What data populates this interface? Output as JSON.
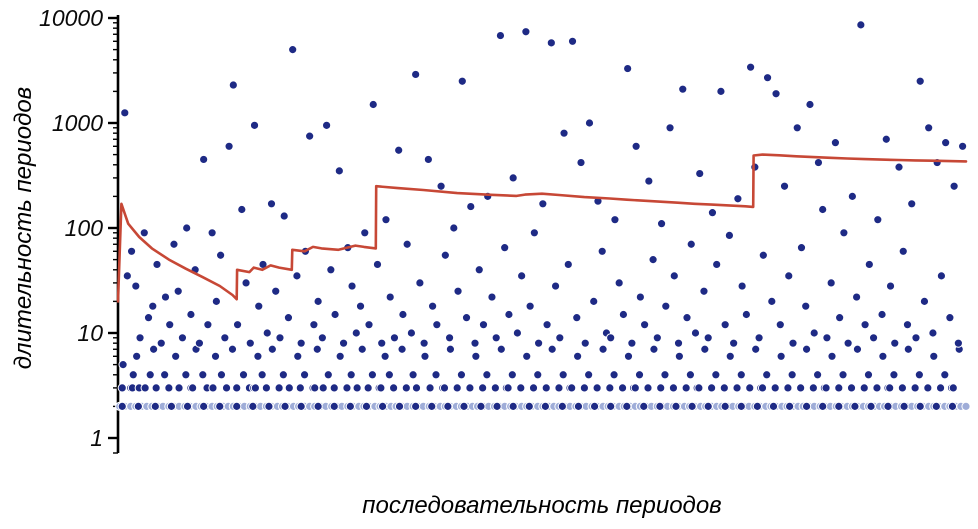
{
  "chart_data": {
    "type": "scatter",
    "title": "",
    "xlabel": "последовательность периодов",
    "ylabel": "длительность периодов",
    "x_scale": "linear",
    "y_scale": "log",
    "xlim": [
      0,
      100
    ],
    "ylim": [
      1,
      10000
    ],
    "grid": false,
    "legend": "none",
    "y_ticks": [
      1,
      10,
      100,
      1000,
      10000
    ],
    "y_tick_labels": [
      "1",
      "10",
      "100",
      "1000",
      "10000"
    ],
    "colors": {
      "scatter_fill": "#1e2a85",
      "scatter_stroke": "#ffffff",
      "band_fill": "#9fadd8",
      "line": "#c74836",
      "axis": "#000000",
      "text": "#000000"
    },
    "bands": [
      {
        "y": 2,
        "fill": "#9fadd8",
        "x": [
          0.2,
          0.8,
          1.5,
          2.1,
          2.8,
          3.4,
          4.0,
          4.7,
          5.3,
          6.0,
          6.6,
          7.2,
          7.9,
          8.5,
          9.2,
          9.8,
          10.4,
          11.1,
          11.7,
          12.4,
          13.0,
          13.6,
          14.3,
          14.9,
          15.6,
          16.2,
          16.8,
          17.5,
          18.1,
          18.8,
          19.4,
          20.0,
          20.7,
          21.3,
          22.0,
          22.6,
          23.2,
          23.9,
          24.5,
          25.2,
          25.8,
          26.4,
          27.1,
          27.7,
          28.4,
          29.0,
          29.6,
          30.3,
          30.9,
          31.6,
          32.2,
          32.8,
          33.5,
          34.1,
          34.8,
          35.4,
          36.0,
          36.7,
          37.3,
          38.0,
          38.6,
          39.2,
          39.9,
          40.5,
          41.2,
          41.8,
          42.4,
          43.1,
          43.7,
          44.4,
          45.0,
          45.6,
          46.3,
          46.9,
          47.6,
          48.2,
          48.8,
          49.5,
          50.1,
          50.8,
          51.4,
          52.0,
          52.7,
          53.3,
          54.0,
          54.6,
          55.2,
          55.9,
          56.5,
          57.2,
          57.8,
          58.4,
          59.1,
          59.7,
          60.4,
          61.0,
          61.6,
          62.3,
          62.9,
          63.6,
          64.2,
          64.8,
          65.5,
          66.1,
          66.8,
          67.4,
          68.0,
          68.7,
          69.3,
          70.0,
          70.6,
          71.2,
          71.9,
          72.5,
          73.2,
          73.8,
          74.4,
          75.1,
          75.7,
          76.4,
          77.0,
          77.6,
          78.3,
          78.9,
          79.6,
          80.2,
          80.8,
          81.5,
          82.1,
          82.8,
          83.4,
          84.0,
          84.7,
          85.3,
          86.0,
          86.6,
          87.2,
          87.9,
          88.5,
          89.2,
          89.8,
          90.4,
          91.1,
          91.7,
          92.4,
          93.0,
          93.6,
          94.3,
          94.9,
          95.6,
          96.2,
          96.8,
          97.5,
          98.1,
          98.8,
          99.4,
          100
        ]
      },
      {
        "y": 2,
        "fill": "#1e2a85",
        "x": [
          0.5,
          2.4,
          4.4,
          6.3,
          8.2,
          10.1,
          12.0,
          14.0,
          15.9,
          17.8,
          19.7,
          21.6,
          23.6,
          25.5,
          27.4,
          29.3,
          31.2,
          33.2,
          35.1,
          37.0,
          38.9,
          40.8,
          42.8,
          44.7,
          46.6,
          48.5,
          50.4,
          52.4,
          54.3,
          56.2,
          58.1,
          60.0,
          62.0,
          63.9,
          65.8,
          67.7,
          69.6,
          71.6,
          73.5,
          75.4,
          77.3,
          79.2,
          81.2,
          83.1,
          85.0,
          86.9,
          88.8,
          90.8,
          92.7,
          94.6,
          96.5,
          98.4
        ]
      },
      {
        "y": 3,
        "fill": "#1e2a85",
        "x": [
          0.5,
          1.5,
          1.7,
          2.5,
          3.2,
          4.5,
          6.0,
          7.2,
          8.6,
          8.8,
          10.5,
          11.2,
          12.8,
          14.0,
          15.5,
          16.0,
          16.2,
          17.5,
          19.0,
          20.2,
          21.5,
          23.0,
          23.2,
          24.2,
          25.5,
          27.0,
          28.2,
          29.5,
          30.8,
          31.0,
          32.5,
          34.0,
          35.2,
          36.8,
          38.3,
          38.5,
          40.0,
          41.5,
          43.0,
          44.5,
          45.8,
          46.0,
          47.5,
          49.0,
          50.5,
          52.0,
          53.3,
          53.5,
          55.0,
          56.5,
          58.0,
          59.5,
          60.8,
          61.0,
          62.5,
          64.0,
          65.5,
          67.0,
          68.3,
          68.5,
          70.0,
          71.5,
          73.0,
          74.5,
          75.8,
          76.0,
          77.5,
          79.0,
          80.5,
          82.0,
          83.3,
          83.5,
          85.0,
          86.5,
          88.0,
          89.5,
          90.8,
          91.0,
          92.5,
          94.0,
          95.5,
          97.0,
          98.3,
          98.5
        ]
      },
      {
        "y": 4,
        "fill": "#1e2a85",
        "x": [
          1.8,
          3.8,
          5.5,
          8.0,
          10.0,
          12.2,
          14.8,
          17.0,
          19.5,
          22.0,
          24.8,
          27.5,
          30.0,
          32.0,
          34.8,
          37.5,
          40.5,
          43.5,
          46.5,
          49.5,
          52.5,
          55.5,
          58.5,
          61.5,
          64.5,
          67.5,
          70.5,
          73.5,
          76.5,
          79.5,
          82.5,
          85.5,
          88.5,
          91.5,
          94.5,
          97.5
        ]
      },
      {
        "y": 6,
        "fill": "#1e2a85",
        "x": [
          2.2,
          6.8,
          11.5,
          16.5,
          21.2,
          26.2,
          31.5,
          36.2,
          42.2,
          48.2,
          54.2,
          60.2,
          66.2,
          72.2,
          78.2,
          84.2,
          90.2,
          96.2
        ]
      },
      {
        "y": 7,
        "fill": "#1e2a85",
        "x": [
          4.2,
          9.2,
          13.5,
          18.2,
          23.5,
          28.8,
          33.5,
          39.2,
          45.2,
          51.2,
          57.2,
          63.2,
          69.2,
          75.2,
          81.2,
          87.2,
          93.2,
          99.2
        ]
      }
    ],
    "points": [
      [
        0.6,
        5
      ],
      [
        0.8,
        1250
      ],
      [
        1.1,
        35
      ],
      [
        1.6,
        60
      ],
      [
        2.1,
        28
      ],
      [
        2.6,
        9
      ],
      [
        3.1,
        90
      ],
      [
        3.6,
        14
      ],
      [
        4.1,
        18
      ],
      [
        4.6,
        45
      ],
      [
        5.1,
        8
      ],
      [
        5.6,
        22
      ],
      [
        6.1,
        12
      ],
      [
        6.6,
        70
      ],
      [
        7.1,
        25
      ],
      [
        7.6,
        9
      ],
      [
        8.1,
        100
      ],
      [
        8.6,
        15
      ],
      [
        9.1,
        40
      ],
      [
        9.6,
        8
      ],
      [
        10.1,
        450
      ],
      [
        10.6,
        12
      ],
      [
        11.1,
        90
      ],
      [
        11.6,
        20
      ],
      [
        12.1,
        55
      ],
      [
        12.6,
        9
      ],
      [
        13.1,
        600
      ],
      [
        13.6,
        2300
      ],
      [
        14.1,
        12
      ],
      [
        14.6,
        150
      ],
      [
        15.1,
        30
      ],
      [
        15.6,
        8
      ],
      [
        16.1,
        950
      ],
      [
        16.6,
        18
      ],
      [
        17.1,
        45
      ],
      [
        17.6,
        10
      ],
      [
        18.1,
        170
      ],
      [
        18.6,
        25
      ],
      [
        19.1,
        9
      ],
      [
        19.6,
        130
      ],
      [
        20.1,
        14
      ],
      [
        20.6,
        5000
      ],
      [
        21.1,
        35
      ],
      [
        21.6,
        8
      ],
      [
        22.1,
        60
      ],
      [
        22.6,
        750
      ],
      [
        23.1,
        12
      ],
      [
        23.6,
        20
      ],
      [
        24.1,
        9
      ],
      [
        24.6,
        950
      ],
      [
        25.1,
        40
      ],
      [
        25.6,
        15
      ],
      [
        26.1,
        350
      ],
      [
        26.6,
        8
      ],
      [
        27.1,
        65
      ],
      [
        27.6,
        28
      ],
      [
        28.1,
        10
      ],
      [
        28.6,
        18
      ],
      [
        29.1,
        90
      ],
      [
        29.6,
        12
      ],
      [
        30.1,
        1500
      ],
      [
        30.6,
        45
      ],
      [
        31.1,
        8
      ],
      [
        31.6,
        120
      ],
      [
        32.1,
        22
      ],
      [
        32.6,
        9
      ],
      [
        33.1,
        550
      ],
      [
        33.6,
        15
      ],
      [
        34.1,
        70
      ],
      [
        34.6,
        10
      ],
      [
        35.1,
        2900
      ],
      [
        35.6,
        30
      ],
      [
        36.1,
        8
      ],
      [
        36.6,
        450
      ],
      [
        37.1,
        18
      ],
      [
        37.6,
        12
      ],
      [
        38.1,
        250
      ],
      [
        38.6,
        55
      ],
      [
        39.1,
        9
      ],
      [
        39.6,
        100
      ],
      [
        40.1,
        25
      ],
      [
        40.6,
        2500
      ],
      [
        41.1,
        14
      ],
      [
        41.6,
        160
      ],
      [
        42.1,
        8
      ],
      [
        42.6,
        40
      ],
      [
        43.1,
        12
      ],
      [
        43.6,
        200
      ],
      [
        44.1,
        22
      ],
      [
        44.6,
        9
      ],
      [
        45.1,
        6800
      ],
      [
        45.6,
        65
      ],
      [
        46.1,
        15
      ],
      [
        46.6,
        300
      ],
      [
        47.1,
        10
      ],
      [
        47.6,
        35
      ],
      [
        48.1,
        7400
      ],
      [
        48.6,
        18
      ],
      [
        49.1,
        90
      ],
      [
        49.6,
        8
      ],
      [
        50.1,
        170
      ],
      [
        50.6,
        12
      ],
      [
        51.1,
        5800
      ],
      [
        51.6,
        28
      ],
      [
        52.1,
        9
      ],
      [
        52.6,
        800
      ],
      [
        53.1,
        45
      ],
      [
        53.6,
        6000
      ],
      [
        54.1,
        14
      ],
      [
        54.6,
        420
      ],
      [
        55.1,
        8
      ],
      [
        55.6,
        1000
      ],
      [
        56.1,
        20
      ],
      [
        56.6,
        180
      ],
      [
        57.1,
        60
      ],
      [
        57.6,
        10
      ],
      [
        58.1,
        9
      ],
      [
        58.6,
        120
      ],
      [
        59.1,
        30
      ],
      [
        59.6,
        15
      ],
      [
        60.1,
        3300
      ],
      [
        60.6,
        8
      ],
      [
        61.1,
        600
      ],
      [
        61.6,
        22
      ],
      [
        62.1,
        12
      ],
      [
        62.6,
        280
      ],
      [
        63.1,
        50
      ],
      [
        63.6,
        9
      ],
      [
        64.1,
        110
      ],
      [
        64.6,
        18
      ],
      [
        65.1,
        900
      ],
      [
        65.6,
        35
      ],
      [
        66.1,
        8
      ],
      [
        66.6,
        2100
      ],
      [
        67.1,
        14
      ],
      [
        67.6,
        70
      ],
      [
        68.1,
        10
      ],
      [
        68.6,
        330
      ],
      [
        69.1,
        25
      ],
      [
        69.6,
        9
      ],
      [
        70.1,
        140
      ],
      [
        70.6,
        45
      ],
      [
        71.1,
        2000
      ],
      [
        71.6,
        12
      ],
      [
        72.1,
        85
      ],
      [
        72.6,
        8
      ],
      [
        73.1,
        190
      ],
      [
        73.6,
        28
      ],
      [
        74.1,
        15
      ],
      [
        74.6,
        3400
      ],
      [
        75.1,
        380
      ],
      [
        75.6,
        9
      ],
      [
        76.1,
        55
      ],
      [
        76.6,
        2700
      ],
      [
        77.1,
        20
      ],
      [
        77.6,
        1900
      ],
      [
        78.1,
        12
      ],
      [
        78.6,
        250
      ],
      [
        79.1,
        35
      ],
      [
        79.6,
        8
      ],
      [
        80.1,
        900
      ],
      [
        80.6,
        65
      ],
      [
        81.1,
        18
      ],
      [
        81.6,
        1500
      ],
      [
        82.1,
        10
      ],
      [
        82.6,
        420
      ],
      [
        83.1,
        150
      ],
      [
        83.6,
        9
      ],
      [
        84.1,
        30
      ],
      [
        84.6,
        650
      ],
      [
        85.1,
        14
      ],
      [
        85.6,
        90
      ],
      [
        86.1,
        8
      ],
      [
        86.6,
        200
      ],
      [
        87.1,
        22
      ],
      [
        87.6,
        8600
      ],
      [
        88.1,
        12
      ],
      [
        88.6,
        45
      ],
      [
        89.1,
        9
      ],
      [
        89.6,
        120
      ],
      [
        90.1,
        15
      ],
      [
        90.6,
        700
      ],
      [
        91.1,
        28
      ],
      [
        91.6,
        8
      ],
      [
        92.1,
        380
      ],
      [
        92.6,
        60
      ],
      [
        93.1,
        12
      ],
      [
        93.6,
        170
      ],
      [
        94.1,
        9
      ],
      [
        94.6,
        2500
      ],
      [
        95.1,
        20
      ],
      [
        95.6,
        900
      ],
      [
        96.1,
        10
      ],
      [
        96.6,
        420
      ],
      [
        97.1,
        35
      ],
      [
        97.6,
        650
      ],
      [
        98.1,
        14
      ],
      [
        98.6,
        250
      ],
      [
        99.1,
        8
      ],
      [
        99.6,
        600
      ]
    ],
    "line": {
      "name": "running-mean-line",
      "points": [
        [
          0,
          20
        ],
        [
          0.4,
          170
        ],
        [
          1.2,
          110
        ],
        [
          2.5,
          82
        ],
        [
          4,
          64
        ],
        [
          6,
          50
        ],
        [
          8,
          41
        ],
        [
          10,
          34
        ],
        [
          12,
          28
        ],
        [
          13.5,
          23
        ],
        [
          14,
          21
        ],
        [
          14.05,
          40
        ],
        [
          15.5,
          38
        ],
        [
          16,
          42
        ],
        [
          17,
          40
        ],
        [
          18,
          44
        ],
        [
          19,
          42
        ],
        [
          20.5,
          40
        ],
        [
          20.55,
          62
        ],
        [
          22,
          60
        ],
        [
          23,
          66
        ],
        [
          24,
          64
        ],
        [
          26,
          62
        ],
        [
          28,
          68
        ],
        [
          29,
          66
        ],
        [
          30.4,
          64
        ],
        [
          30.45,
          250
        ],
        [
          33,
          240
        ],
        [
          36,
          230
        ],
        [
          40,
          215
        ],
        [
          44,
          207
        ],
        [
          47,
          202
        ],
        [
          48,
          208
        ],
        [
          50,
          212
        ],
        [
          52,
          206
        ],
        [
          55,
          197
        ],
        [
          58,
          191
        ],
        [
          60,
          186
        ],
        [
          62,
          182
        ],
        [
          64,
          178
        ],
        [
          66,
          174
        ],
        [
          68,
          170
        ],
        [
          70,
          167
        ],
        [
          72,
          164
        ],
        [
          74,
          161
        ],
        [
          74.9,
          159
        ],
        [
          74.95,
          490
        ],
        [
          76,
          500
        ],
        [
          78,
          492
        ],
        [
          80,
          482
        ],
        [
          82,
          473
        ],
        [
          84,
          466
        ],
        [
          86,
          459
        ],
        [
          88,
          453
        ],
        [
          90,
          448
        ],
        [
          92,
          444
        ],
        [
          94,
          440
        ],
        [
          96,
          437
        ],
        [
          98,
          434
        ],
        [
          100,
          431
        ]
      ]
    }
  }
}
